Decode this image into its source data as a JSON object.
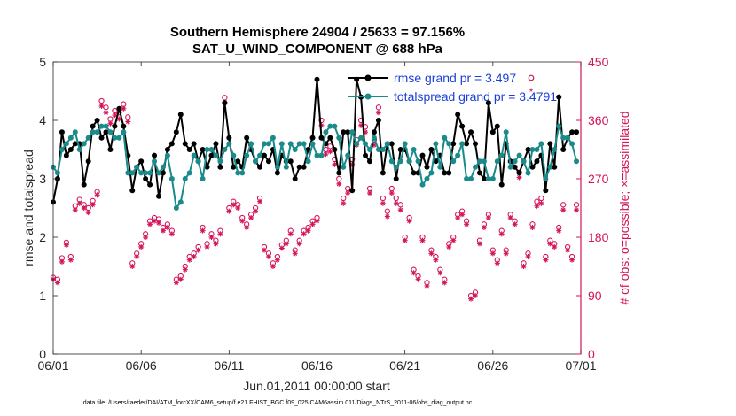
{
  "chart_data": {
    "type": "line",
    "title": "Southern Hemisphere 24904 / 25633 = 97.156%",
    "subtitle": "SAT_U_WIND_COMPONENT @ 688 hPa",
    "xlabel": "Jun.01,2011 00:00:00 start",
    "ylabel": "rmse and totalspread",
    "y2label": "# of obs: o=possible; ×=assimilated",
    "xlim": [
      0,
      30
    ],
    "ylim": [
      0,
      5
    ],
    "y2lim": [
      0,
      450
    ],
    "x_ticks": [
      "06/01",
      "06/06",
      "06/11",
      "06/16",
      "06/21",
      "06/26",
      "07/01"
    ],
    "x_tick_positions": [
      0,
      5,
      10,
      15,
      20,
      25,
      30
    ],
    "y_ticks": [
      "0",
      "1",
      "2",
      "3",
      "4",
      "5"
    ],
    "y2_ticks": [
      "0",
      "90",
      "180",
      "270",
      "360",
      "450"
    ],
    "footer": "data file: /Users/raeder/DAI/ATM_forcXX/CAM6_setup/f.e21.FHIST_BGC.f09_025.CAM6assim.011/Diags_NTrS_2011-06/obs_diag_output.nc",
    "colors": {
      "rmse": "#000000",
      "spread": "#1a8a8a",
      "obs": "#d4145a",
      "axis_right": "#d4145a",
      "legend_text": "#1a3fd6"
    },
    "series": [
      {
        "name": "rmse grand pr = 3.497",
        "x": [
          0,
          0.25,
          0.5,
          0.75,
          1,
          1.25,
          1.5,
          1.75,
          2,
          2.25,
          2.5,
          2.75,
          3,
          3.25,
          3.5,
          3.75,
          4,
          4.25,
          4.5,
          4.75,
          5,
          5.25,
          5.5,
          5.75,
          6,
          6.25,
          6.5,
          6.75,
          7,
          7.25,
          7.5,
          7.75,
          8,
          8.25,
          8.5,
          8.75,
          9,
          9.25,
          9.5,
          9.75,
          10,
          10.25,
          10.5,
          10.75,
          11,
          11.25,
          11.5,
          11.75,
          12,
          12.25,
          12.5,
          12.75,
          13,
          13.25,
          13.5,
          13.75,
          14,
          14.25,
          14.5,
          14.75,
          15,
          15.25,
          15.5,
          15.75,
          16,
          16.25,
          16.5,
          16.75,
          17,
          17.25,
          17.5,
          17.75,
          18,
          18.25,
          18.5,
          18.75,
          19,
          19.25,
          19.5,
          19.75,
          20,
          20.25,
          20.5,
          20.75,
          21,
          21.25,
          21.5,
          21.75,
          22,
          22.25,
          22.5,
          22.75,
          23,
          23.25,
          23.5,
          23.75,
          24,
          24.25,
          24.5,
          24.75,
          25,
          25.25,
          25.5,
          25.75,
          26,
          26.25,
          26.5,
          26.75,
          27,
          27.25,
          27.5,
          27.75,
          28,
          28.25,
          28.5,
          28.75,
          29,
          29.25,
          29.5,
          29.75
        ],
        "values": [
          2.6,
          3.0,
          3.8,
          3.4,
          3.5,
          3.6,
          3.6,
          2.9,
          3.3,
          3.9,
          4.0,
          3.7,
          3.8,
          3.5,
          3.9,
          4.2,
          3.9,
          3.4,
          2.8,
          3.2,
          3.3,
          3.0,
          2.9,
          3.4,
          2.7,
          3.1,
          3.5,
          3.6,
          3.8,
          4.1,
          3.6,
          3.5,
          3.6,
          3.3,
          3.5,
          3.2,
          3.4,
          3.6,
          3.2,
          4.3,
          3.7,
          3.2,
          3.3,
          3.2,
          3.7,
          3.5,
          3.3,
          3.2,
          3.4,
          3.3,
          3.5,
          3.1,
          3.4,
          3.3,
          3.3,
          3.0,
          3.2,
          3.2,
          3.5,
          3.7,
          4.7,
          3.7,
          3.6,
          3.7,
          3.5,
          3.1,
          3.8,
          3.8,
          2.8,
          4.7,
          4.4,
          3.4,
          3.3,
          3.8,
          4.0,
          3.1,
          3.6,
          3.6,
          3.0,
          3.5,
          3.5,
          3.3,
          3.1,
          3.1,
          3.4,
          3.2,
          3.5,
          3.3,
          3.4,
          3.1,
          3.1,
          3.6,
          4.1,
          3.9,
          3.6,
          3.8,
          3.6,
          3.1,
          3.0,
          4.3,
          3.8,
          3.9,
          2.9,
          3.6,
          3.3,
          3.2,
          3.1,
          3.3,
          3.5,
          3.2,
          3.3,
          3.4,
          2.8,
          3.6,
          3.2,
          4.4,
          3.5,
          3.7,
          3.8,
          3.8
        ]
      },
      {
        "name": "totalspread grand pr = 3.4791",
        "x": [
          0,
          0.25,
          0.5,
          0.75,
          1,
          1.25,
          1.5,
          1.75,
          2,
          2.25,
          2.5,
          2.75,
          3,
          3.25,
          3.5,
          3.75,
          4,
          4.25,
          4.5,
          4.75,
          5,
          5.25,
          5.5,
          5.75,
          6,
          6.25,
          6.5,
          6.75,
          7,
          7.25,
          7.5,
          7.75,
          8,
          8.25,
          8.5,
          8.75,
          9,
          9.25,
          9.5,
          9.75,
          10,
          10.25,
          10.5,
          10.75,
          11,
          11.25,
          11.5,
          11.75,
          12,
          12.25,
          12.5,
          12.75,
          13,
          13.25,
          13.5,
          13.75,
          14,
          14.25,
          14.5,
          14.75,
          15,
          15.25,
          15.5,
          15.75,
          16,
          16.25,
          16.5,
          16.75,
          17,
          17.25,
          17.5,
          17.75,
          18,
          18.25,
          18.5,
          18.75,
          19,
          19.25,
          19.5,
          19.75,
          20,
          20.25,
          20.5,
          20.75,
          21,
          21.25,
          21.5,
          21.75,
          22,
          22.25,
          22.5,
          22.75,
          23,
          23.25,
          23.5,
          23.75,
          24,
          24.25,
          24.5,
          24.75,
          25,
          25.25,
          25.5,
          25.75,
          26,
          26.25,
          26.5,
          26.75,
          27,
          27.25,
          27.5,
          27.75,
          28,
          28.25,
          28.5,
          28.75,
          29,
          29.25,
          29.5,
          29.75
        ],
        "values": [
          3.2,
          3.1,
          3.5,
          3.6,
          3.7,
          3.8,
          3.5,
          3.6,
          3.7,
          3.8,
          3.8,
          3.9,
          3.9,
          3.8,
          3.7,
          3.7,
          3.8,
          3.1,
          3.1,
          3.2,
          3.1,
          3.1,
          3.1,
          3.3,
          3.1,
          3.2,
          3.4,
          3.0,
          2.5,
          2.6,
          3.0,
          3.1,
          3.4,
          3.3,
          3.0,
          3.5,
          3.5,
          3.4,
          3.3,
          3.5,
          3.6,
          3.4,
          3.1,
          3.1,
          3.4,
          3.6,
          3.3,
          3.4,
          3.6,
          3.6,
          3.7,
          3.2,
          3.6,
          3.2,
          3.6,
          3.5,
          3.6,
          3.6,
          3.3,
          3.6,
          3.4,
          3.4,
          3.8,
          3.9,
          3.9,
          3.7,
          3.2,
          3.4,
          3.8,
          3.6,
          3.7,
          3.6,
          3.5,
          3.7,
          3.5,
          3.5,
          3.6,
          3.3,
          3.2,
          3.3,
          3.6,
          3.3,
          3.5,
          3.3,
          2.9,
          3.0,
          3.1,
          3.6,
          3.2,
          3.7,
          3.6,
          3.3,
          3.4,
          3.6,
          3.0,
          3.0,
          3.2,
          3.3,
          3.3,
          3.0,
          3.0,
          3.3,
          3.4,
          3.8,
          3.2,
          3.3,
          3.4,
          3.3,
          3.1,
          3.5,
          3.5,
          3.6,
          3.0,
          3.2,
          3.5,
          3.9,
          3.7,
          3.7,
          3.6,
          3.3
        ]
      }
    ],
    "obs_series": [
      {
        "name": "possible",
        "marker": "o",
        "x": [
          0,
          0.25,
          0.5,
          0.75,
          1,
          1.25,
          1.5,
          1.75,
          2,
          2.25,
          2.5,
          2.75,
          3,
          3.25,
          3.5,
          3.75,
          4,
          4.25,
          4.5,
          4.75,
          5,
          5.25,
          5.5,
          5.75,
          6,
          6.25,
          6.5,
          6.75,
          7,
          7.25,
          7.5,
          7.75,
          8,
          8.25,
          8.5,
          8.75,
          9,
          9.25,
          9.5,
          9.75,
          10,
          10.25,
          10.5,
          10.75,
          11,
          11.25,
          11.5,
          11.75,
          12,
          12.25,
          12.5,
          12.75,
          13,
          13.25,
          13.5,
          13.75,
          14,
          14.25,
          14.5,
          14.75,
          15,
          15.25,
          15.5,
          15.75,
          16,
          16.25,
          16.5,
          16.75,
          17,
          17.25,
          17.5,
          17.75,
          18,
          18.25,
          18.5,
          18.75,
          19,
          19.25,
          19.5,
          19.75,
          20,
          20.25,
          20.5,
          20.75,
          21,
          21.25,
          21.5,
          21.75,
          22,
          22.25,
          22.5,
          22.75,
          23,
          23.25,
          23.5,
          23.75,
          24,
          24.25,
          24.5,
          24.75,
          25,
          25.25,
          25.5,
          25.75,
          26,
          26.25,
          26.5,
          26.75,
          27,
          27.25,
          27.5,
          27.75,
          28,
          28.25,
          28.5,
          28.75,
          29,
          29.25,
          29.5,
          29.75
        ],
        "values": [
          118,
          115,
          148,
          172,
          150,
          228,
          238,
          230,
          225,
          236,
          250,
          390,
          380,
          362,
          375,
          372,
          385,
          365,
          140,
          155,
          170,
          185,
          205,
          210,
          208,
          195,
          200,
          190,
          115,
          120,
          135,
          150,
          155,
          165,
          195,
          170,
          185,
          175,
          190,
          395,
          225,
          235,
          230,
          210,
          200,
          215,
          225,
          240,
          165,
          155,
          140,
          150,
          168,
          175,
          190,
          160,
          175,
          190,
          195,
          205,
          210,
          360,
          315,
          320,
          300,
          270,
          240,
          255,
          300,
          330,
          360,
          350,
          255,
          330,
          380,
          240,
          220,
          255,
          240,
          230,
          180,
          210,
          130,
          120,
          180,
          110,
          160,
          150,
          130,
          115,
          170,
          180,
          215,
          220,
          205,
          90,
          95,
          175,
          200,
          215,
          160,
          145,
          190,
          160,
          215,
          205,
          280,
          140,
          155,
          200,
          235,
          240,
          150,
          175,
          170,
          195,
          230,
          165,
          150,
          230
        ]
      },
      {
        "name": "assimilated",
        "marker": "x",
        "x": [
          0,
          0.25,
          0.5,
          0.75,
          1,
          1.25,
          1.5,
          1.75,
          2,
          2.25,
          2.5,
          2.75,
          3,
          3.25,
          3.5,
          3.75,
          4,
          4.25,
          4.5,
          4.75,
          5,
          5.25,
          5.5,
          5.75,
          6,
          6.25,
          6.5,
          6.75,
          7,
          7.25,
          7.5,
          7.75,
          8,
          8.25,
          8.5,
          8.75,
          9,
          9.25,
          9.5,
          9.75,
          10,
          10.25,
          10.5,
          10.75,
          11,
          11.25,
          11.5,
          11.75,
          12,
          12.25,
          12.5,
          12.75,
          13,
          13.25,
          13.5,
          13.75,
          14,
          14.25,
          14.5,
          14.75,
          15,
          15.25,
          15.5,
          15.75,
          16,
          16.25,
          16.5,
          16.75,
          17,
          17.25,
          17.5,
          17.75,
          18,
          18.25,
          18.5,
          18.75,
          19,
          19.25,
          19.5,
          19.75,
          20,
          20.25,
          20.5,
          20.75,
          21,
          21.25,
          21.5,
          21.75,
          22,
          22.25,
          22.5,
          22.75,
          23,
          23.25,
          23.5,
          23.75,
          24,
          24.25,
          24.5,
          24.75,
          25,
          25.25,
          25.5,
          25.75,
          26,
          26.25,
          26.5,
          26.75,
          27,
          27.25,
          27.5,
          27.75,
          28,
          28.25,
          28.5,
          28.75,
          29,
          29.25,
          29.5,
          29.75
        ],
        "values": [
          115,
          110,
          142,
          168,
          145,
          222,
          232,
          225,
          218,
          230,
          245,
          382,
          372,
          355,
          368,
          362,
          378,
          358,
          135,
          150,
          165,
          180,
          200,
          205,
          202,
          190,
          195,
          185,
          110,
          115,
          130,
          145,
          150,
          160,
          190,
          165,
          180,
          170,
          185,
          388,
          220,
          230,
          225,
          205,
          195,
          210,
          220,
          235,
          160,
          150,
          135,
          145,
          163,
          170,
          185,
          155,
          170,
          185,
          190,
          200,
          205,
          352,
          308,
          312,
          292,
          262,
          232,
          248,
          292,
          322,
          352,
          342,
          248,
          322,
          372,
          232,
          212,
          248,
          232,
          222,
          175,
          205,
          125,
          115,
          175,
          105,
          155,
          145,
          125,
          110,
          165,
          175,
          210,
          215,
          200,
          85,
          90,
          170,
          195,
          210,
          155,
          140,
          185,
          155,
          210,
          200,
          272,
          135,
          150,
          195,
          228,
          232,
          145,
          170,
          165,
          190,
          222,
          160,
          145,
          222
        ]
      }
    ]
  }
}
